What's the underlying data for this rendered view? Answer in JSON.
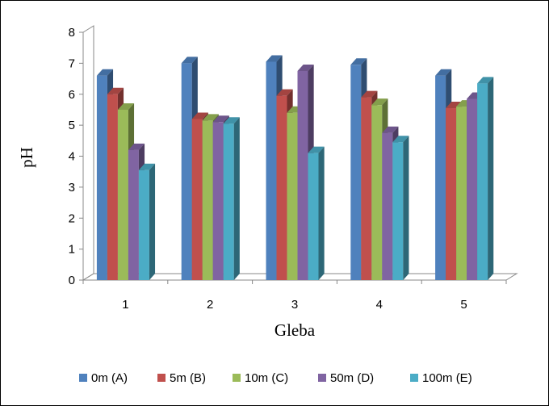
{
  "chart_data": {
    "type": "bar",
    "xlabel": "Gleba",
    "ylabel": "pH",
    "ylim": [
      0,
      8
    ],
    "yticks": [
      "0",
      "1",
      "2",
      "3",
      "4",
      "5",
      "6",
      "7",
      "8"
    ],
    "categories": [
      "1",
      "2",
      "3",
      "4",
      "5"
    ],
    "series": [
      {
        "name": "0m (A)",
        "color": "#4F81BD",
        "values": [
          6.6,
          7.0,
          7.05,
          6.95,
          6.6
        ]
      },
      {
        "name": "5m (B)",
        "color": "#C0504D",
        "values": [
          6.0,
          5.2,
          5.95,
          5.9,
          5.55
        ]
      },
      {
        "name": "10m (C)",
        "color": "#9BBB59",
        "values": [
          5.5,
          5.15,
          5.4,
          5.65,
          5.6
        ]
      },
      {
        "name": "50m (D)",
        "color": "#8064A2",
        "values": [
          4.2,
          5.1,
          6.75,
          4.75,
          5.85
        ]
      },
      {
        "name": "100m (E)",
        "color": "#4BACC6",
        "values": [
          3.55,
          5.05,
          4.1,
          4.45,
          6.35
        ]
      }
    ],
    "grid": false,
    "legend": "bottom"
  }
}
